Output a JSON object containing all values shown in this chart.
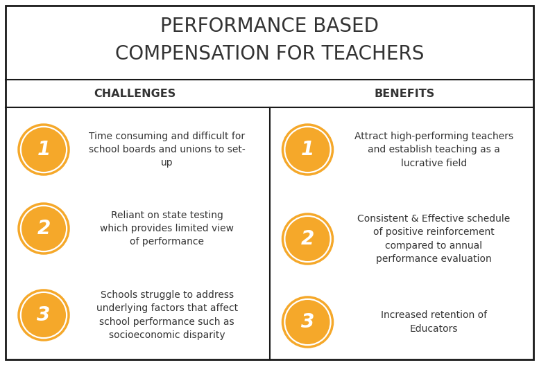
{
  "title_line1": "PERFORMANCE BASED",
  "title_line2": "COMPENSATION FOR TEACHERS",
  "col1_header": "CHALLENGES",
  "col2_header": "BENEFITS",
  "challenges": [
    "Time consuming and difficult for\nschool boards and unions to set-\nup",
    "Reliant on state testing\nwhich provides limited view\nof performance",
    "Schools struggle to address\nunderlying factors that affect\nschool performance such as\nsocioeconomic disparity"
  ],
  "benefits": [
    "Attract high-performing teachers\nand establish teaching as a\nlucrative field",
    "Consistent & Effective schedule\nof positive reinforcement\ncompared to annual\nperformance evaluation",
    "Increased retention of\nEducators"
  ],
  "bg_color": "#ffffff",
  "border_color": "#1a1a1a",
  "orange_fill": "#F5A82A",
  "text_color": "#333333",
  "title_fontsize": 20,
  "header_fontsize": 11.5,
  "body_fontsize": 10,
  "number_fontsize": 20,
  "fig_width": 7.77,
  "fig_height": 5.27,
  "dpi": 100
}
